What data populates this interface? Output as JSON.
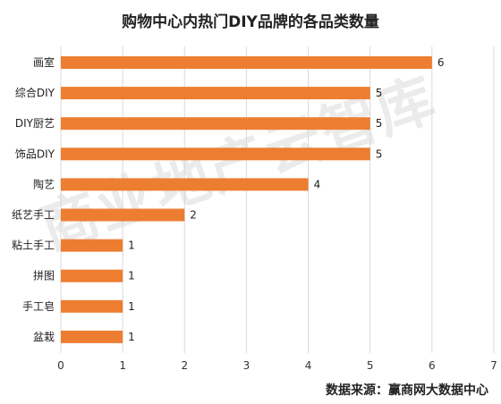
{
  "chart_data": {
    "type": "bar",
    "orientation": "horizontal",
    "title": "购物中心内热门DIY品牌的各品类数量",
    "categories": [
      "画室",
      "综合DIY",
      "DIY厨艺",
      "饰品DIY",
      "陶艺",
      "纸艺手工",
      "粘土手工",
      "拼图",
      "手工皂",
      "盆栽"
    ],
    "values": [
      6,
      5,
      5,
      5,
      4,
      2,
      1,
      1,
      1,
      1
    ],
    "xlim": [
      0,
      7
    ],
    "xticks": [
      "0",
      "1",
      "2",
      "3",
      "4",
      "5",
      "6",
      "7"
    ],
    "grid": true,
    "data_labels": true,
    "bar_color": "#ED7D31",
    "source": "数据来源：赢商网大数据中心",
    "watermark": "商业地产云智库"
  }
}
